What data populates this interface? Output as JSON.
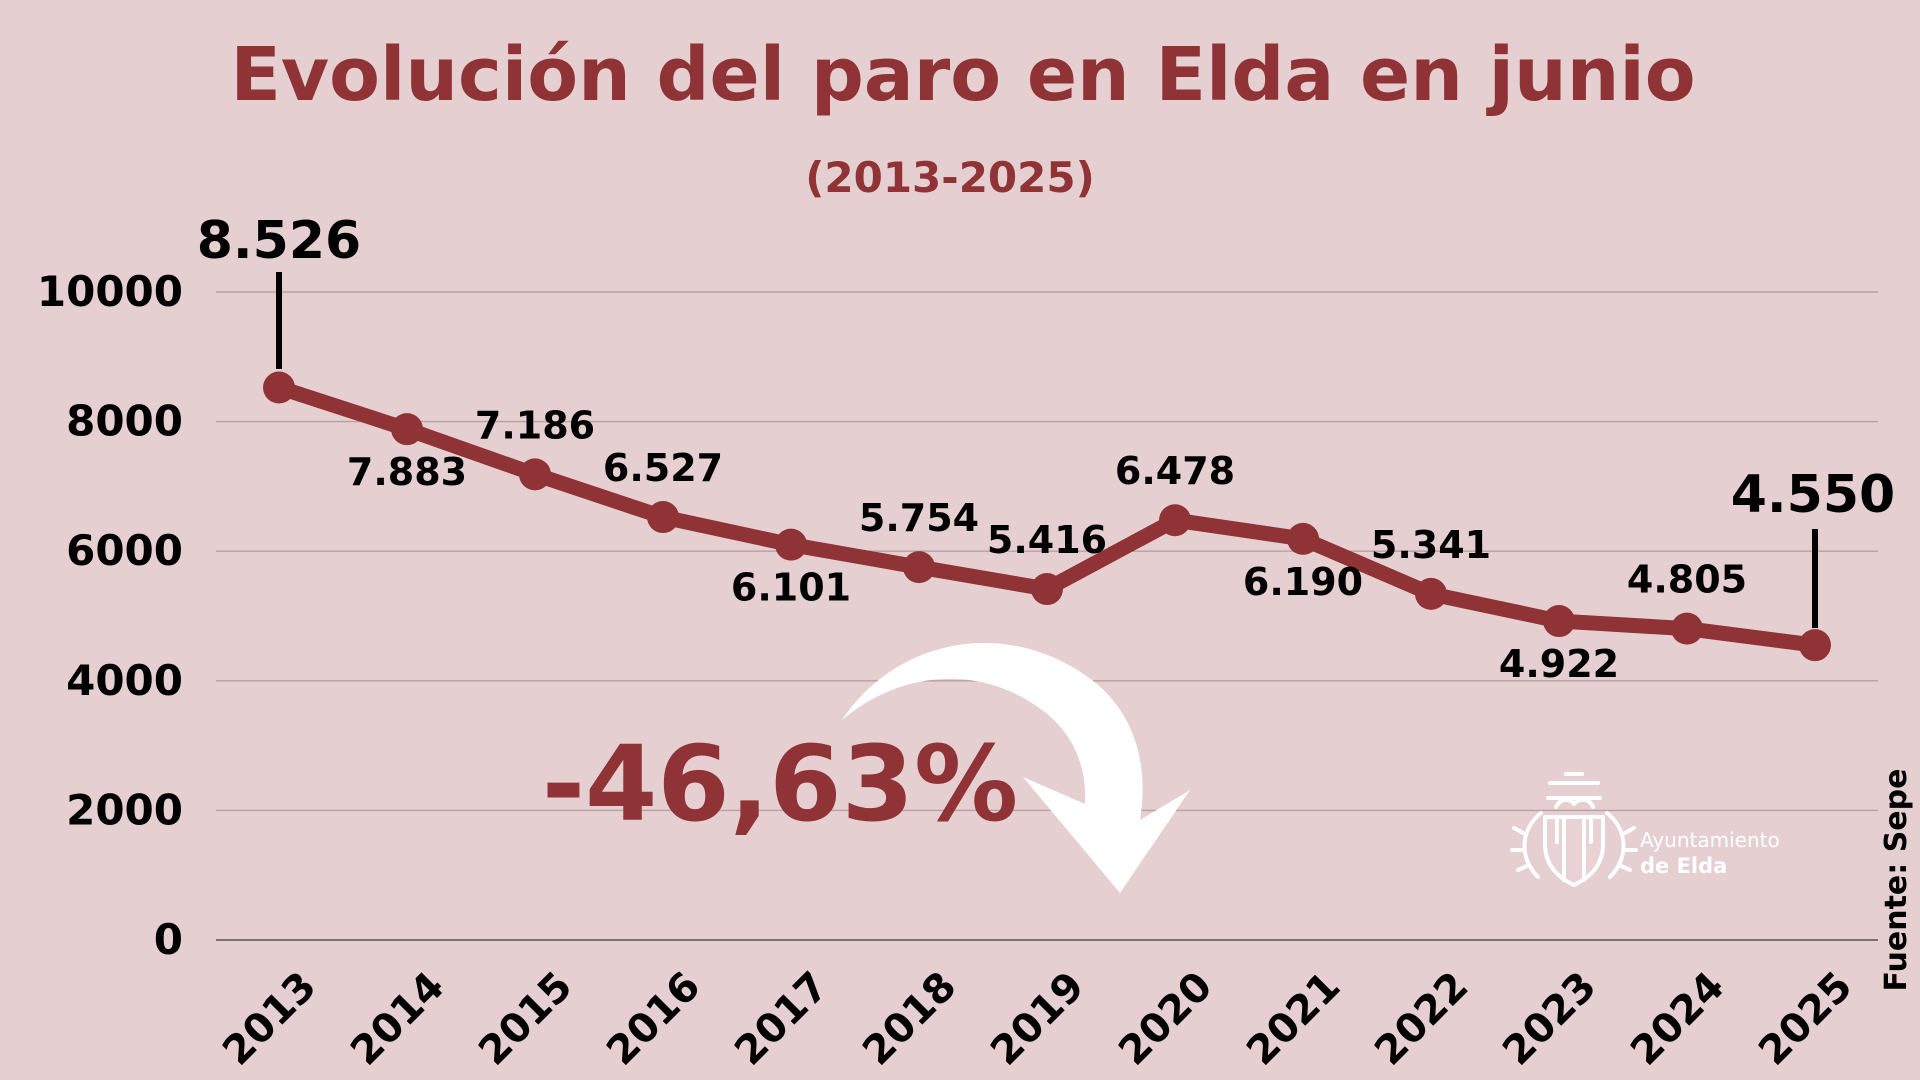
{
  "colors": {
    "background": "#e6cfd0",
    "accent": "#8f3336",
    "text": "#000000",
    "grid": "#b89fa2",
    "white": "#ffffff"
  },
  "chart_data": {
    "type": "line",
    "title": "Evolución del paro en Elda en junio",
    "subtitle": "(2013-2025)",
    "categories": [
      "2013",
      "2014",
      "2015",
      "2016",
      "2017",
      "2018",
      "2019",
      "2020",
      "2021",
      "2022",
      "2023",
      "2024",
      "2025"
    ],
    "series": [
      {
        "values": [
          8526,
          7883,
          7186,
          6527,
          6101,
          5754,
          5416,
          6478,
          6190,
          5341,
          4922,
          4805,
          4550
        ],
        "labels": [
          "8.526",
          "7.883",
          "7.186",
          "6.527",
          "6.101",
          "5.754",
          "5.416",
          "6.478",
          "6.190",
          "5.341",
          "4.922",
          "4.805",
          "4.550"
        ],
        "label_positions": [
          "above-callout",
          "below",
          "above",
          "above",
          "below",
          "above",
          "above",
          "above",
          "below",
          "above",
          "below",
          "above",
          "above-callout"
        ]
      }
    ],
    "y_ticks": [
      "0",
      "2000",
      "4000",
      "6000",
      "8000",
      "10000"
    ],
    "y_tick_values": [
      0,
      2000,
      4000,
      6000,
      8000,
      10000
    ],
    "ylim": [
      0,
      10000
    ],
    "grid": true,
    "annotation": "-46,63%",
    "annotation_icon": "curved-down-arrow-icon",
    "source": "Fuente: Sepe"
  },
  "logo": {
    "line1": "Ayuntamiento",
    "line2": "de Elda",
    "icon": "coat-of-arms-icon"
  }
}
